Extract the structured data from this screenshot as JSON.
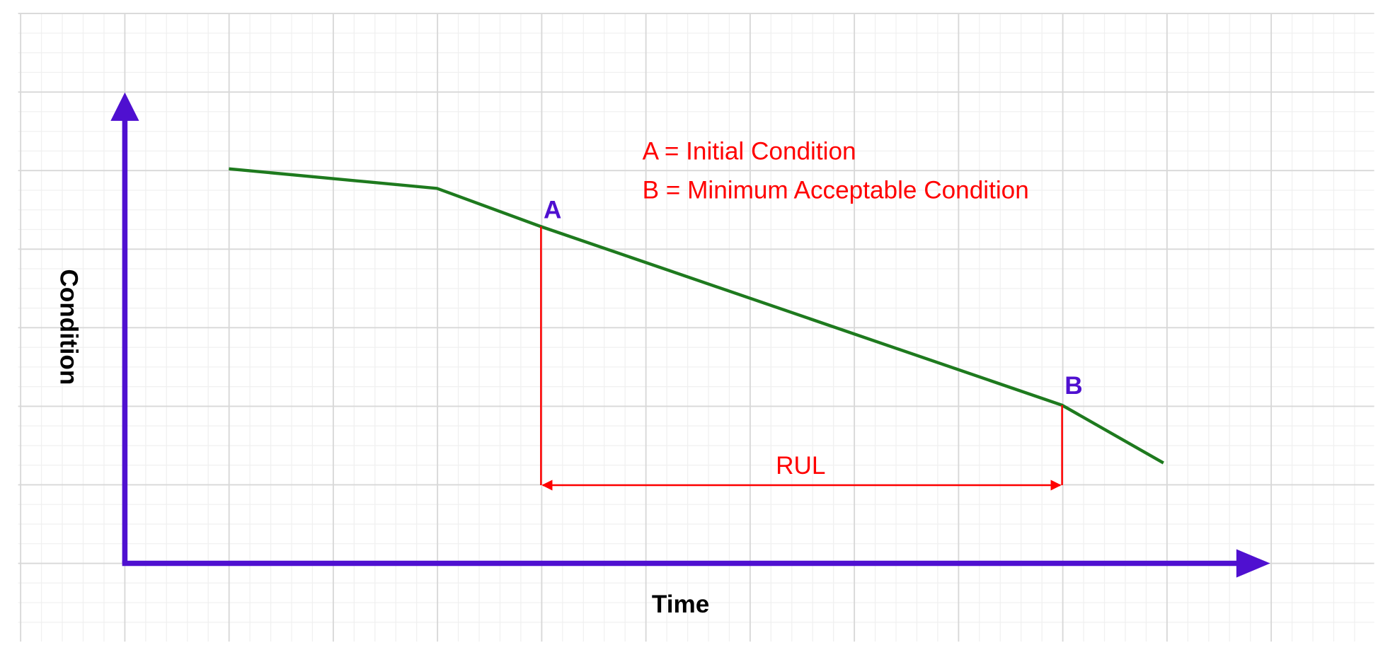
{
  "axes": {
    "y_label": "Condition",
    "x_label": "Time"
  },
  "points": [
    {
      "label": "A"
    },
    {
      "label": "B"
    }
  ],
  "legend": [
    "A = Initial Condition",
    "B = Minimum Acceptable Condition"
  ],
  "span": {
    "label": "RUL"
  }
}
